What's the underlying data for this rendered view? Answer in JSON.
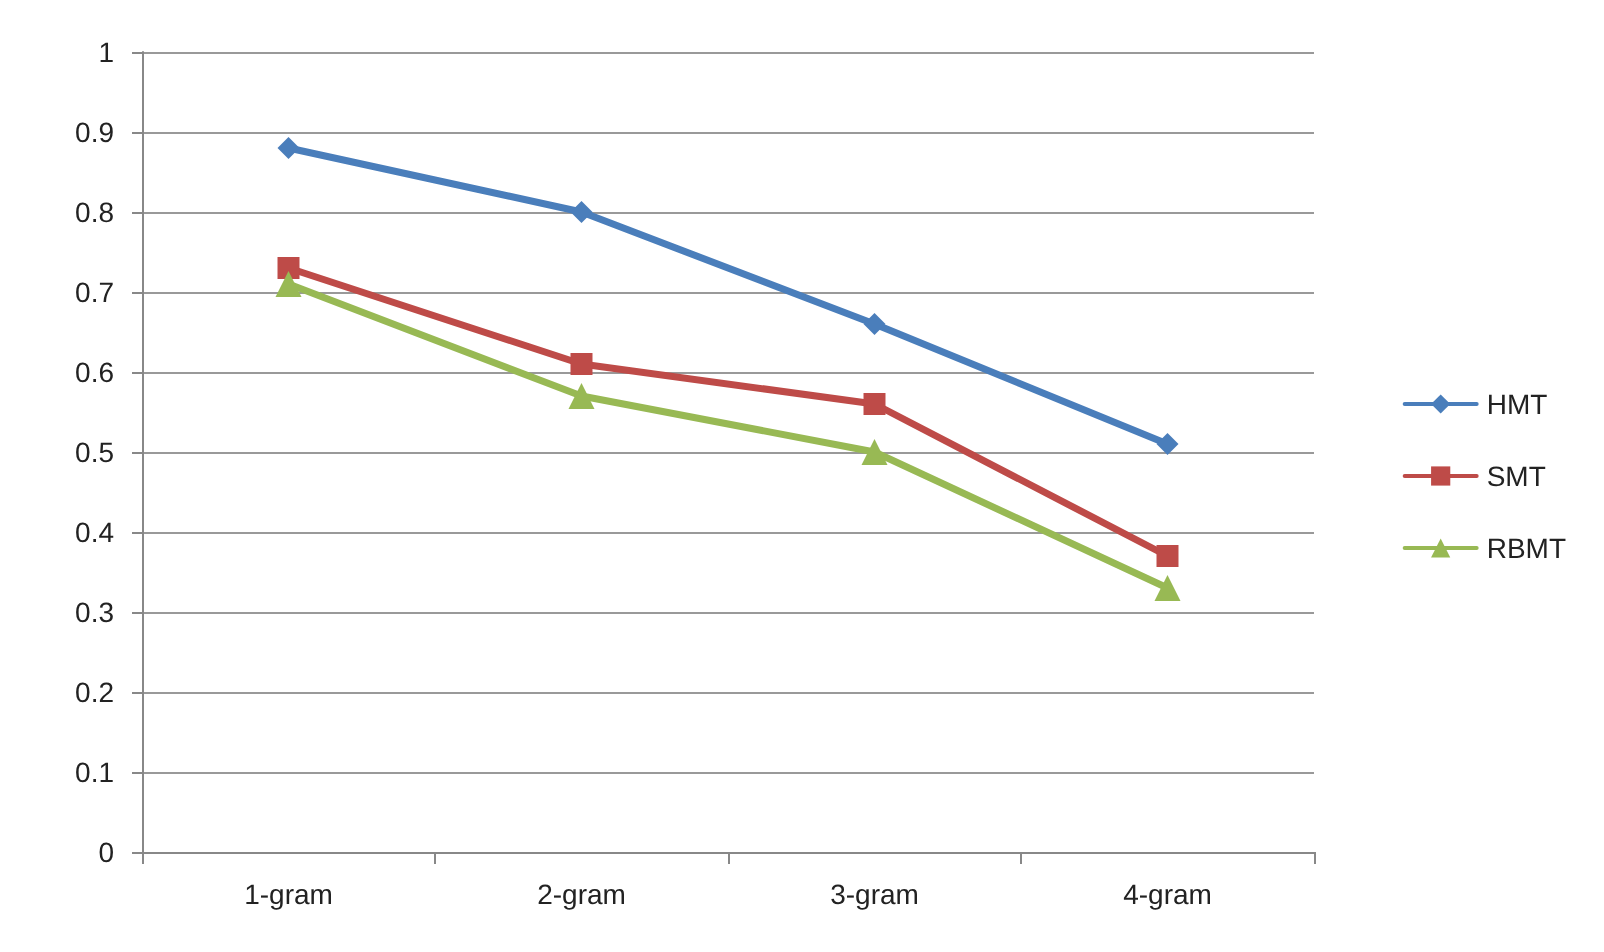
{
  "chart_data": {
    "type": "line",
    "categories": [
      "1-gram",
      "2-gram",
      "3-gram",
      "4-gram"
    ],
    "series": [
      {
        "name": "HMT",
        "color": "#4a7ebb",
        "marker": "diamond",
        "values": [
          0.88,
          0.8,
          0.66,
          0.51
        ]
      },
      {
        "name": "SMT",
        "color": "#be4b48",
        "marker": "square",
        "values": [
          0.73,
          0.61,
          0.56,
          0.37
        ]
      },
      {
        "name": "RBMT",
        "color": "#98b954",
        "marker": "triangle",
        "values": [
          0.71,
          0.57,
          0.5,
          0.33
        ]
      }
    ],
    "ylim": [
      0,
      1
    ],
    "yticks": [
      0,
      0.1,
      0.2,
      0.3,
      0.4,
      0.5,
      0.6,
      0.7,
      0.8,
      0.9,
      1
    ],
    "grid": "y",
    "legend": "right"
  }
}
